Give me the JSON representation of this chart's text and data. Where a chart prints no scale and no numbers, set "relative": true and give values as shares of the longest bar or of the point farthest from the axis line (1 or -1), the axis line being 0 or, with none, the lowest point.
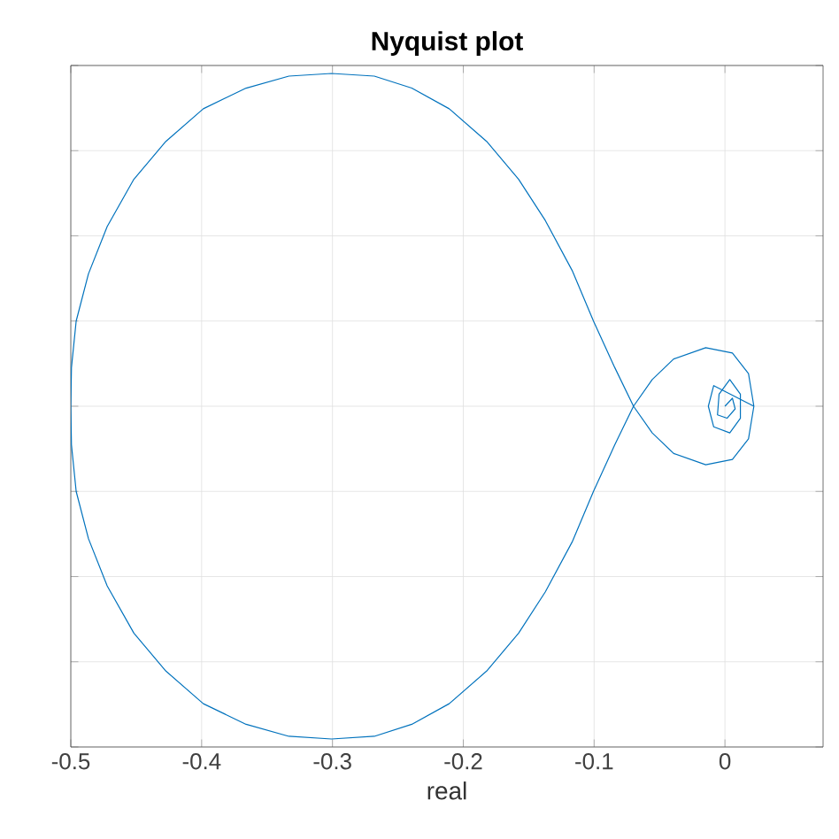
{
  "chart_data": {
    "type": "line",
    "title": "Nyquist plot",
    "xlabel": "real",
    "relative": true,
    "xlim": [
      -0.5,
      0.075
    ],
    "xticks": [
      -0.5,
      -0.4,
      -0.3,
      -0.2,
      -0.1,
      0
    ],
    "grid": true,
    "marker": "none",
    "line_style": "solid",
    "series": [
      {
        "color": "#0072bd",
        "x": [
          0.0,
          0.0057,
          0.0078,
          0.0016,
          -0.0057,
          -0.0045,
          0.0037,
          0.0118,
          0.0118,
          0.0037,
          -0.0086,
          -0.0127,
          -0.0086,
          0.0221,
          0.018,
          0.0057,
          -0.0147,
          -0.0392,
          -0.0556,
          -0.0699,
          -0.0842,
          -0.1005,
          -0.1168,
          -0.1373,
          -0.1577,
          -0.1822,
          -0.2108,
          -0.2394,
          -0.268,
          -0.3007,
          -0.3333,
          -0.366,
          -0.3987,
          -0.4273,
          -0.4518,
          -0.4722,
          -0.4865,
          -0.4959,
          -0.4995,
          -0.5,
          -0.4995,
          -0.4959,
          -0.4865,
          -0.4722,
          -0.4518,
          -0.4273,
          -0.3987,
          -0.366,
          -0.3333,
          -0.3007,
          -0.268,
          -0.2394,
          -0.2108,
          -0.1822,
          -0.1577,
          -0.1373,
          -0.1168,
          -0.1005,
          -0.0842,
          -0.0699,
          -0.0556,
          -0.0392,
          -0.0147,
          0.0057,
          0.018,
          0.0221
        ],
        "values": [
          0.5,
          0.512,
          0.496,
          0.482,
          0.487,
          0.518,
          0.54,
          0.518,
          0.482,
          0.46,
          0.469,
          0.5,
          0.531,
          0.5,
          0.549,
          0.58,
          0.588,
          0.571,
          0.54,
          0.5,
          0.442,
          0.372,
          0.296,
          0.221,
          0.159,
          0.102,
          0.053,
          0.022,
          0.004,
          0.0,
          0.004,
          0.022,
          0.053,
          0.102,
          0.159,
          0.23,
          0.301,
          0.372,
          0.442,
          0.5,
          0.558,
          0.628,
          0.699,
          0.77,
          0.841,
          0.898,
          0.947,
          0.978,
          0.996,
          1.0,
          0.996,
          0.978,
          0.947,
          0.898,
          0.841,
          0.779,
          0.704,
          0.628,
          0.558,
          0.5,
          0.46,
          0.429,
          0.412,
          0.42,
          0.451,
          0.5
        ]
      }
    ]
  }
}
